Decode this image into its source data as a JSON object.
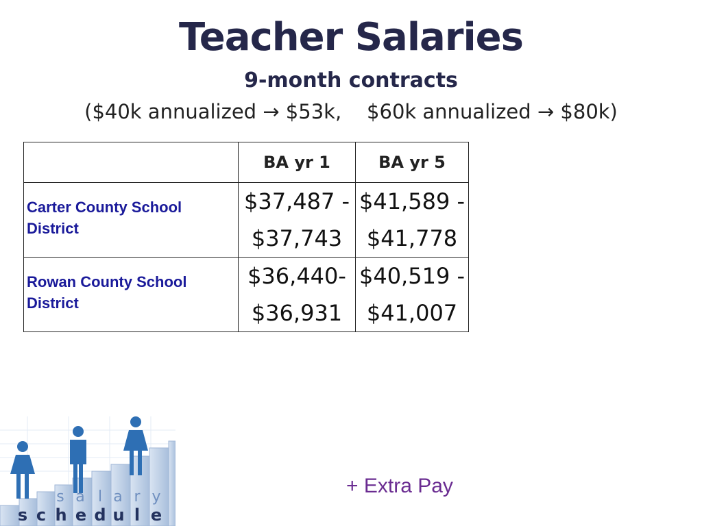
{
  "slide": {
    "title": "Teacher Salaries",
    "subtitle": "9-month contracts",
    "note": "($40k annualized → $53k,    $60k annualized → $80k)"
  },
  "table": {
    "headers": [
      "",
      "BA yr 1",
      "BA yr 5"
    ],
    "rows": [
      {
        "district": "Carter County School District",
        "ba_yr1": [
          "$37,487 -",
          "$37,743"
        ],
        "ba_yr5": [
          "$41,589 -",
          "$41,778"
        ]
      },
      {
        "district": "Rowan County School District",
        "ba_yr1": [
          "$36,440-",
          "$36,931"
        ],
        "ba_yr5": [
          "$40,519 -",
          "$41,007"
        ]
      }
    ]
  },
  "footer": {
    "extra_pay": "+ Extra Pay"
  },
  "logo": {
    "icon": "salary-schedule-logo",
    "word1": [
      "s",
      "a",
      "l",
      "a",
      "r",
      "y"
    ],
    "word2": [
      "s",
      "c",
      "h",
      "e",
      "d",
      "u",
      "l",
      "e"
    ]
  },
  "colors": {
    "title": "#25274a",
    "district_text": "#1a1a9a",
    "extra_pay": "#6a2c91",
    "logo_figure": "#2e6fb4",
    "logo_block": "#b9cbe3"
  }
}
